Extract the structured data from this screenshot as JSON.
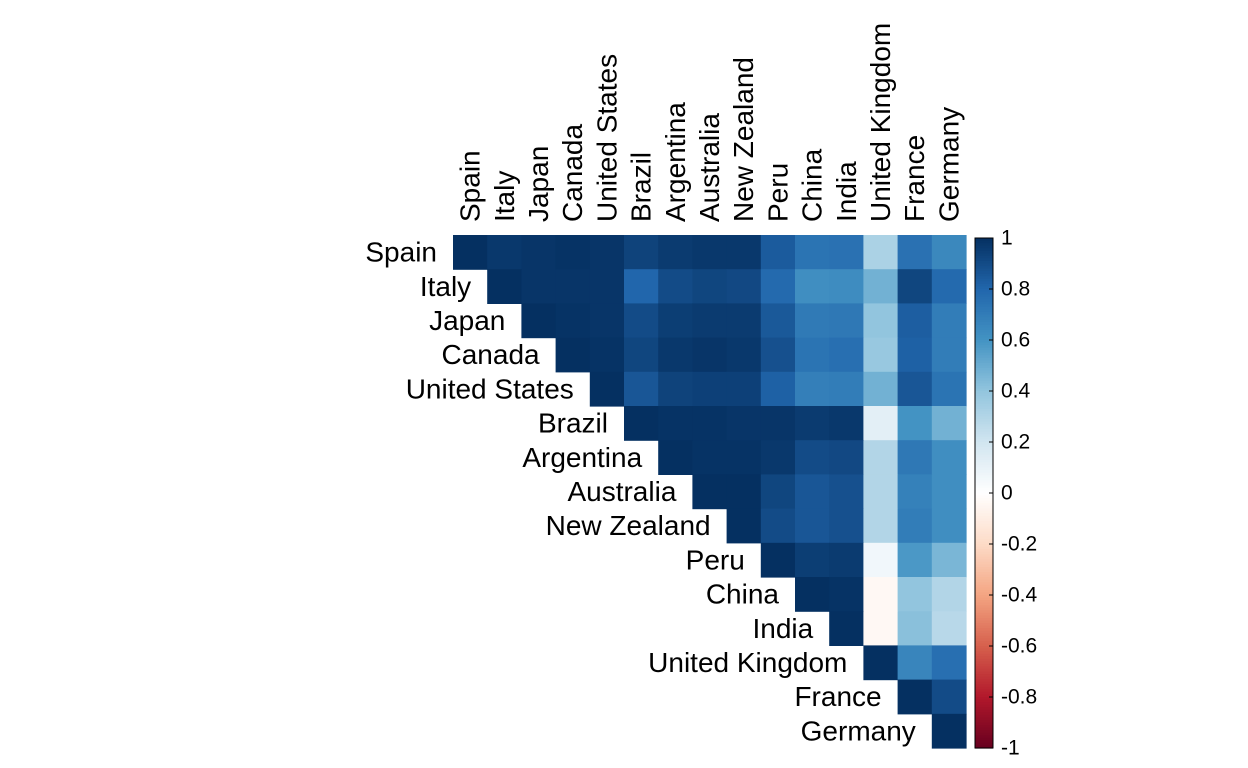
{
  "chart_data": {
    "type": "heatmap",
    "subtype": "correlation-upper-triangle",
    "variables": [
      "Spain",
      "Italy",
      "Japan",
      "Canada",
      "United States",
      "Brazil",
      "Argentina",
      "Australia",
      "New Zealand",
      "Peru",
      "China",
      "India",
      "United Kingdom",
      "France",
      "Germany"
    ],
    "matrix": [
      [
        1.0,
        0.97,
        0.98,
        0.99,
        0.98,
        0.93,
        0.96,
        0.97,
        0.97,
        0.84,
        0.74,
        0.75,
        0.32,
        0.75,
        0.65
      ],
      [
        null,
        1.0,
        0.98,
        0.98,
        0.98,
        0.8,
        0.9,
        0.92,
        0.91,
        0.78,
        0.62,
        0.63,
        0.48,
        0.92,
        0.78
      ],
      [
        null,
        null,
        1.0,
        0.99,
        0.98,
        0.9,
        0.95,
        0.96,
        0.96,
        0.85,
        0.71,
        0.72,
        0.4,
        0.83,
        0.7
      ],
      [
        null,
        null,
        null,
        1.0,
        0.99,
        0.92,
        0.97,
        0.98,
        0.97,
        0.88,
        0.74,
        0.76,
        0.38,
        0.82,
        0.7
      ],
      [
        null,
        null,
        null,
        null,
        1.0,
        0.86,
        0.93,
        0.94,
        0.94,
        0.82,
        0.69,
        0.7,
        0.48,
        0.86,
        0.74
      ],
      [
        null,
        null,
        null,
        null,
        null,
        1.0,
        0.99,
        0.99,
        0.98,
        0.98,
        0.96,
        0.97,
        0.12,
        0.6,
        0.48
      ],
      [
        null,
        null,
        null,
        null,
        null,
        null,
        1.0,
        0.99,
        0.99,
        0.97,
        0.9,
        0.91,
        0.3,
        0.72,
        0.62
      ],
      [
        null,
        null,
        null,
        null,
        null,
        null,
        null,
        1.0,
        1.0,
        0.92,
        0.86,
        0.88,
        0.3,
        0.68,
        0.62
      ],
      [
        null,
        null,
        null,
        null,
        null,
        null,
        null,
        null,
        1.0,
        0.9,
        0.86,
        0.88,
        0.3,
        0.7,
        0.62
      ],
      [
        null,
        null,
        null,
        null,
        null,
        null,
        null,
        null,
        null,
        1.0,
        0.95,
        0.96,
        0.06,
        0.58,
        0.46
      ],
      [
        null,
        null,
        null,
        null,
        null,
        null,
        null,
        null,
        null,
        null,
        1.0,
        0.99,
        -0.04,
        0.4,
        0.3
      ],
      [
        null,
        null,
        null,
        null,
        null,
        null,
        null,
        null,
        null,
        null,
        null,
        1.0,
        -0.04,
        0.42,
        0.28
      ],
      [
        null,
        null,
        null,
        null,
        null,
        null,
        null,
        null,
        null,
        null,
        null,
        null,
        1.0,
        0.66,
        0.76
      ],
      [
        null,
        null,
        null,
        null,
        null,
        null,
        null,
        null,
        null,
        null,
        null,
        null,
        null,
        1.0,
        0.9
      ],
      [
        null,
        null,
        null,
        null,
        null,
        null,
        null,
        null,
        null,
        null,
        null,
        null,
        null,
        null,
        1.0
      ]
    ],
    "colorbar": {
      "range": [
        -1,
        1
      ],
      "ticks": [
        "1",
        "0.8",
        "0.6",
        "0.4",
        "0.2",
        "0",
        "-0.2",
        "-0.4",
        "-0.6",
        "-0.8",
        "-1"
      ],
      "tick_values": [
        1,
        0.8,
        0.6,
        0.4,
        0.2,
        0,
        -0.2,
        -0.4,
        -0.6,
        -0.8,
        -1
      ],
      "palette": [
        "#67001F",
        "#B2182B",
        "#D6604D",
        "#F4A582",
        "#FDDBC7",
        "#FFFFFF",
        "#D1E5F0",
        "#92C5DE",
        "#4393C3",
        "#2166AC",
        "#053061"
      ]
    },
    "legend_position": "right"
  }
}
